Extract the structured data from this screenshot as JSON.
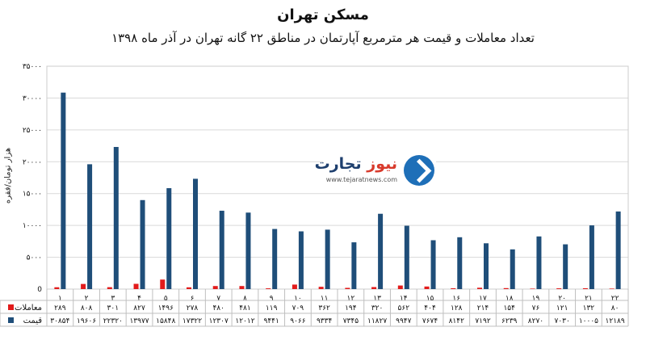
{
  "title": "مسکن تهران",
  "subtitle": "تعداد معاملات و قیمت هر مترمربع آپارتمان در مناطق ۲۲ گانه تهران در آذر ماه ۱۳۹۸",
  "logo": {
    "brand_part1": "تجارت",
    "brand_part2": "نیوز",
    "site": "www.tejaratnews.com"
  },
  "colors": {
    "transactions": "#e21b1b",
    "price": "#1f4e79",
    "grid": "#d9d9d9"
  },
  "chart_data": {
    "type": "bar",
    "ylabel": "هزار تومان/فقره",
    "ylim": [
      0,
      35000
    ],
    "yticks": [
      0,
      5000,
      10000,
      15000,
      20000,
      25000,
      30000,
      35000
    ],
    "ytick_labels": [
      "0",
      "۵۰۰۰",
      "۱۰۰۰۰",
      "۱۵۰۰۰",
      "۲۰۰۰۰",
      "۲۵۰۰۰",
      "۳۰۰۰۰",
      "۳۵۰۰۰"
    ],
    "categories": [
      "۱",
      "۲",
      "۳",
      "۴",
      "۵",
      "۶",
      "۷",
      "۸",
      "۹",
      "۱۰",
      "۱۱",
      "۱۲",
      "۱۳",
      "۱۴",
      "۱۵",
      "۱۶",
      "۱۷",
      "۱۸",
      "۱۹",
      "۲۰",
      "۲۱",
      "۲۲"
    ],
    "series": [
      {
        "name": "معاملات",
        "values": [
          289,
          808,
          301,
          827,
          1496,
          278,
          480,
          481,
          119,
          709,
          362,
          194,
          320,
          562,
          404,
          128,
          214,
          154,
          76,
          121,
          132,
          80
        ],
        "labels": [
          "۲۸۹",
          "۸۰۸",
          "۳۰۱",
          "۸۲۷",
          "۱۴۹۶",
          "۲۷۸",
          "۴۸۰",
          "۴۸۱",
          "۱۱۹",
          "۷۰۹",
          "۳۶۲",
          "۱۹۴",
          "۳۲۰",
          "۵۶۲",
          "۴۰۴",
          "۱۲۸",
          "۲۱۴",
          "۱۵۴",
          "۷۶",
          "۱۲۱",
          "۱۳۲",
          "۸۰"
        ]
      },
      {
        "name": "قیمت",
        "values": [
          30854,
          19606,
          22320,
          13977,
          15848,
          17322,
          12307,
          12012,
          9441,
          9066,
          9334,
          7345,
          11827,
          9947,
          7674,
          8142,
          7192,
          6239,
          8270,
          7030,
          10005,
          12189
        ],
        "labels": [
          "۳۰۸۵۴",
          "۱۹۶۰۶",
          "۲۲۳۲۰",
          "۱۳۹۷۷",
          "۱۵۸۴۸",
          "۱۷۳۲۲",
          "۱۲۳۰۷",
          "۱۲۰۱۲",
          "۹۴۴۱",
          "۹۰۶۶",
          "۹۳۳۴",
          "۷۳۴۵",
          "۱۱۸۲۷",
          "۹۹۴۷",
          "۷۶۷۴",
          "۸۱۴۲",
          "۷۱۹۲",
          "۶۲۳۹",
          "۸۲۷۰",
          "۷۰۳۰",
          "۱۰۰۰۵",
          "۱۲۱۸۹"
        ]
      }
    ]
  }
}
